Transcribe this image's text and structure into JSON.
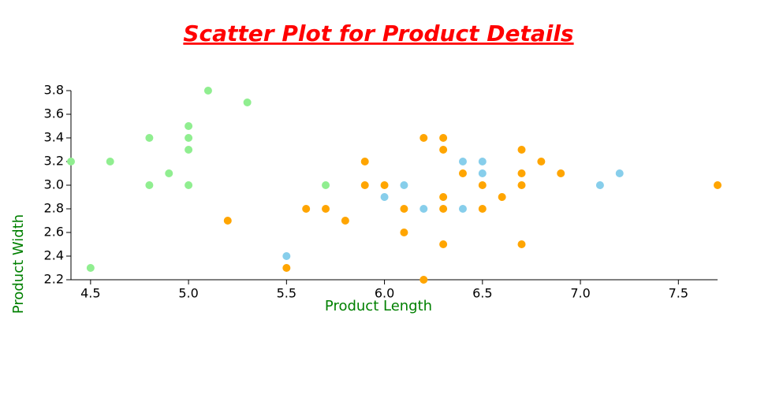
{
  "chart_data": {
    "type": "scatter",
    "title": "Scatter Plot for Product Details",
    "xlabel": "Product Length",
    "ylabel": "Product Width",
    "title_color": "red",
    "label_color": "green",
    "xlim": [
      4.4,
      7.7
    ],
    "ylim": [
      2.2,
      3.8
    ],
    "xticks": [
      4.5,
      {
        "value": 5,
        "label": "5.0"
      },
      5.5,
      {
        "value": 6,
        "label": "6.0"
      },
      6.5,
      {
        "value": 7,
        "label": "7.0"
      },
      7.5
    ],
    "yticks": [
      2.2,
      2.4,
      2.6,
      2.8,
      {
        "value": 3,
        "label": "3.0"
      },
      3.2,
      3.4,
      3.6,
      3.8
    ],
    "grid": false,
    "series": [
      {
        "color": "lightgreen",
        "x": [
          4.4,
          4.5,
          4.6,
          4.8,
          4.8,
          4.9,
          5.0,
          5.0,
          5.0,
          5.0,
          5.1,
          5.3,
          5.7
        ],
        "y": [
          3.2,
          2.3,
          3.2,
          3.4,
          3.0,
          3.1,
          3.5,
          3.4,
          3.3,
          3.0,
          3.8,
          3.7,
          3.0
        ]
      },
      {
        "color": "skyblue",
        "x": [
          5.5,
          6.0,
          6.1,
          6.2,
          6.4,
          6.4,
          6.5,
          6.5,
          7.1,
          7.2
        ],
        "y": [
          2.4,
          2.9,
          3.0,
          2.8,
          3.2,
          2.8,
          3.2,
          3.1,
          3.0,
          3.1
        ]
      },
      {
        "color": "orange",
        "x": [
          5.2,
          5.5,
          5.6,
          5.7,
          5.8,
          5.9,
          5.9,
          6.0,
          6.1,
          6.1,
          6.2,
          6.2,
          6.3,
          6.3,
          6.3,
          6.3,
          6.3,
          6.4,
          6.5,
          6.5,
          6.6,
          6.7,
          6.7,
          6.7,
          6.7,
          6.8,
          6.9,
          7.7
        ],
        "y": [
          2.7,
          2.3,
          2.8,
          2.8,
          2.7,
          3.2,
          3.0,
          3.0,
          2.8,
          2.6,
          3.4,
          2.2,
          3.4,
          3.3,
          2.9,
          2.8,
          2.5,
          3.1,
          3.0,
          2.8,
          2.9,
          3.3,
          3.1,
          3.0,
          2.5,
          3.2,
          3.1,
          3.0
        ]
      }
    ]
  }
}
